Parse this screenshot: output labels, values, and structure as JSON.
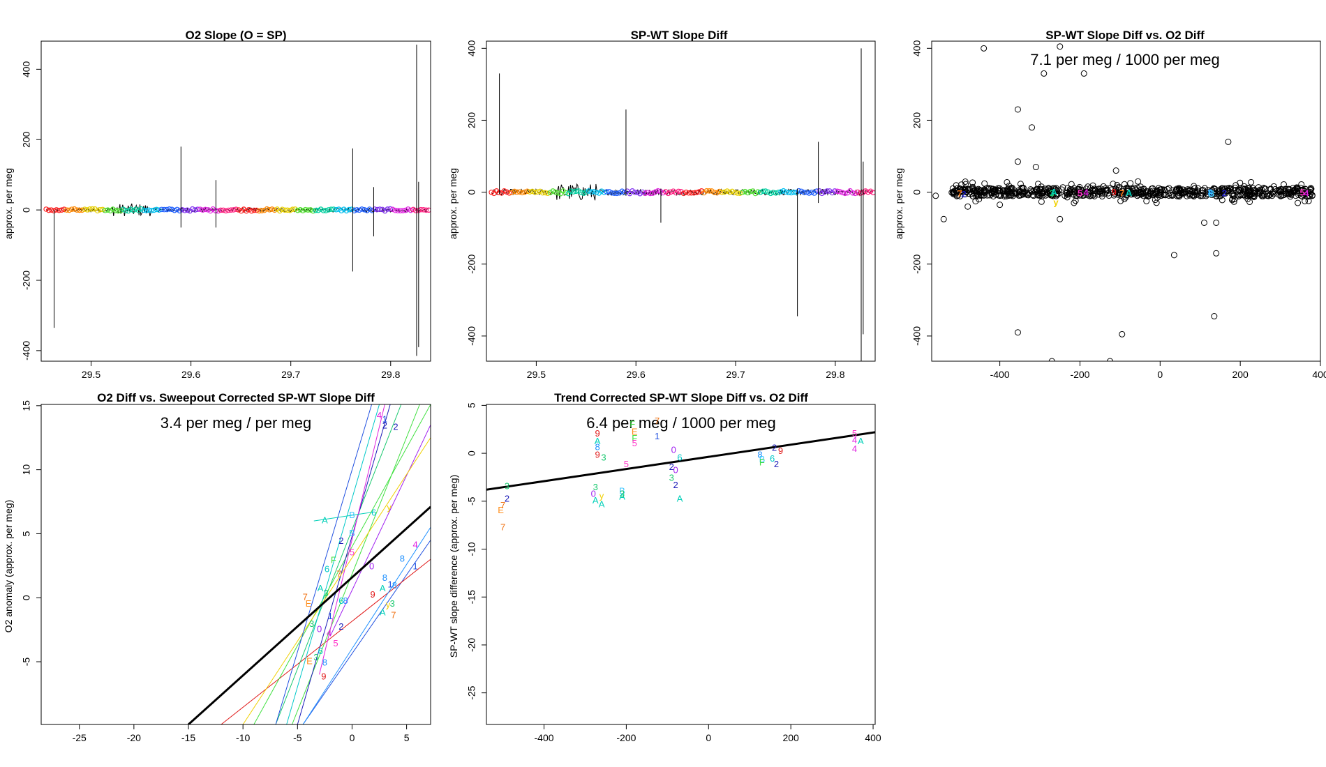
{
  "figure": {
    "description_colors": {
      "frame": "#000000",
      "fit_line": "#000000",
      "background": "#ffffff"
    }
  },
  "label_colors": {
    "0": "#a020f0",
    "1": "#2050e0",
    "2": "#1a1ab8",
    "3": "#18c86e",
    "4": "#e020e0",
    "5": "#ff2fc8",
    "6": "#00c8c8",
    "7": "#f07010",
    "8": "#1e90ff",
    "9": "#e01818",
    "A": "#00d0b8",
    "B": "#40c8ff",
    "E": "#ff8c1a",
    "F": "#40e040",
    "y": "#f0d000"
  },
  "chart_data": [
    {
      "id": "p1",
      "type": "line",
      "title": "O2 Slope (O = SP)",
      "xlabel": "",
      "ylabel": "approx. per meg",
      "xlim": [
        29.45,
        29.84
      ],
      "ylim": [
        -430,
        480
      ],
      "xticks": [
        "29.5",
        "29.6",
        "29.7",
        "29.8"
      ],
      "xtick_values": [
        29.5,
        29.6,
        29.7,
        29.8
      ],
      "yticks": [
        "-400",
        "-200",
        "0",
        "200",
        "400"
      ],
      "ytick_values": [
        -400,
        -200,
        0,
        200,
        400
      ],
      "baseline": 0,
      "noise_band": 6,
      "spikes": [
        {
          "x": 29.463,
          "lo": -335,
          "hi": 0
        },
        {
          "x": 29.59,
          "lo": -50,
          "hi": 180
        },
        {
          "x": 29.625,
          "lo": -50,
          "hi": 85
        },
        {
          "x": 29.762,
          "lo": -175,
          "hi": 175
        },
        {
          "x": 29.783,
          "lo": -75,
          "hi": 65
        },
        {
          "x": 29.826,
          "lo": -415,
          "hi": 470
        },
        {
          "x": 29.828,
          "lo": -390,
          "hi": 80
        }
      ]
    },
    {
      "id": "p2",
      "type": "line",
      "title": "SP-WT Slope Diff",
      "xlabel": "",
      "ylabel": "approx. per meg",
      "xlim": [
        29.45,
        29.84
      ],
      "ylim": [
        -470,
        420
      ],
      "xticks": [
        "29.5",
        "29.6",
        "29.7",
        "29.8"
      ],
      "xtick_values": [
        29.5,
        29.6,
        29.7,
        29.8
      ],
      "yticks": [
        "-400",
        "-200",
        "0",
        "200",
        "400"
      ],
      "ytick_values": [
        -400,
        -200,
        0,
        200,
        400
      ],
      "baseline": 0,
      "noise_band": 8,
      "spikes": [
        {
          "x": 29.463,
          "lo": -5,
          "hi": 330
        },
        {
          "x": 29.59,
          "lo": -10,
          "hi": 230
        },
        {
          "x": 29.625,
          "lo": -85,
          "hi": 10
        },
        {
          "x": 29.762,
          "lo": -345,
          "hi": 10
        },
        {
          "x": 29.783,
          "lo": -30,
          "hi": 140
        },
        {
          "x": 29.826,
          "lo": -470,
          "hi": 400
        },
        {
          "x": 29.828,
          "lo": -395,
          "hi": 85
        }
      ]
    },
    {
      "id": "p3",
      "type": "scatter",
      "title": "SP-WT Slope Diff vs. O2 Diff",
      "annotation": "7.1 per meg / 1000 per meg",
      "xlabel": "",
      "ylabel": "approx. per meg",
      "xlim": [
        -570,
        400
      ],
      "ylim": [
        -470,
        420
      ],
      "xticks": [
        "-400",
        "-200",
        "0",
        "200",
        "400"
      ],
      "xtick_values": [
        -400,
        -200,
        0,
        200,
        400
      ],
      "yticks": [
        "-400",
        "-200",
        "0",
        "200",
        "400"
      ],
      "ytick_values": [
        -400,
        -200,
        0,
        200,
        400
      ],
      "band": {
        "x_from": -520,
        "x_to": 380,
        "y_spread": 12
      },
      "outliers": [
        [
          -440,
          400
        ],
        [
          -250,
          405
        ],
        [
          -290,
          330
        ],
        [
          -190,
          330
        ],
        [
          -355,
          230
        ],
        [
          -320,
          180
        ],
        [
          -355,
          85
        ],
        [
          -310,
          70
        ],
        [
          -110,
          60
        ],
        [
          -540,
          -75
        ],
        [
          -250,
          -75
        ],
        [
          35,
          -175
        ],
        [
          140,
          -170
        ],
        [
          110,
          -85
        ],
        [
          140,
          -85
        ],
        [
          170,
          140
        ],
        [
          -355,
          -390
        ],
        [
          -95,
          -395
        ],
        [
          135,
          -345
        ],
        [
          -270,
          -470
        ],
        [
          -125,
          -470
        ],
        [
          -560,
          -10
        ],
        [
          -480,
          -40
        ],
        [
          -400,
          -35
        ]
      ],
      "clusters": [
        {
          "label": "2",
          "x": -490,
          "y": -8
        },
        {
          "label": "7",
          "x": -500,
          "y": -6
        },
        {
          "label": "3",
          "x": -270,
          "y": -5
        },
        {
          "label": "A",
          "x": -265,
          "y": -2
        },
        {
          "label": "y",
          "x": -260,
          "y": -30
        },
        {
          "label": "5",
          "x": -200,
          "y": -5
        },
        {
          "label": "4",
          "x": -185,
          "y": -3
        },
        {
          "label": "9",
          "x": -115,
          "y": -2
        },
        {
          "label": "7",
          "x": -95,
          "y": -5
        },
        {
          "label": "A",
          "x": -78,
          "y": -4
        },
        {
          "label": "8",
          "x": 125,
          "y": -3
        },
        {
          "label": "B",
          "x": 128,
          "y": -6
        },
        {
          "label": "2",
          "x": 160,
          "y": -5
        },
        {
          "label": "5",
          "x": 355,
          "y": -3
        },
        {
          "label": "4",
          "x": 365,
          "y": -5
        }
      ]
    },
    {
      "id": "p4",
      "type": "scatter",
      "title": "O2 Diff vs. Sweepout Corrected SP-WT Slope Diff",
      "annotation": "3.4 per meg / per meg",
      "xlabel": "",
      "ylabel": "O2 anomaly (approx. per meg)",
      "xlim": [
        -28.5,
        7.2
      ],
      "ylim": [
        -9.9,
        15.1
      ],
      "xticks": [
        "-25",
        "-20",
        "-15",
        "-10",
        "-5",
        "0",
        "5"
      ],
      "xtick_values": [
        -25,
        -20,
        -15,
        -10,
        -5,
        0,
        5
      ],
      "yticks": [
        "-5",
        "0",
        "5",
        "10",
        "15"
      ],
      "ytick_values": [
        -5,
        0,
        5,
        10,
        15
      ],
      "fit_line": [
        [
          -15,
          -9.9
        ],
        [
          7.2,
          7.1
        ]
      ],
      "trend_lines": [
        {
          "label": "1",
          "from": [
            -4.5,
            -9.9
          ],
          "to": [
            7.2,
            4.5
          ]
        },
        {
          "label": "9",
          "from": [
            -12,
            -9.9
          ],
          "to": [
            7.2,
            3.0
          ]
        },
        {
          "label": "3",
          "from": [
            -7,
            -9.9
          ],
          "to": [
            4.5,
            15.1
          ]
        },
        {
          "label": "F",
          "from": [
            -5.5,
            -9.9
          ],
          "to": [
            6.2,
            15.1
          ]
        },
        {
          "label": "F",
          "from": [
            -9,
            -9.9
          ],
          "to": [
            7.2,
            15.1
          ]
        },
        {
          "label": "2",
          "from": [
            -5,
            -9.9
          ],
          "to": [
            3.5,
            15.1
          ]
        },
        {
          "label": "4",
          "from": [
            -3,
            -6
          ],
          "to": [
            3,
            15.1
          ]
        },
        {
          "label": "0",
          "from": [
            -2,
            -3
          ],
          "to": [
            7.2,
            13.5
          ]
        },
        {
          "label": "y",
          "from": [
            -10,
            -9.9
          ],
          "to": [
            7.2,
            12.5
          ]
        },
        {
          "label": "8",
          "from": [
            -4.5,
            -9.9
          ],
          "to": [
            7.2,
            5.5
          ]
        },
        {
          "label": "6",
          "from": [
            -6,
            -9.9
          ],
          "to": [
            2.5,
            15.1
          ]
        },
        {
          "label": "A",
          "from": [
            -3.5,
            6.0
          ],
          "to": [
            2,
            6.7
          ]
        },
        {
          "label": "1",
          "from": [
            -7,
            -9.9
          ],
          "to": [
            1.8,
            15.1
          ]
        }
      ],
      "points": [
        {
          "label": "A",
          "x": -2.5,
          "y": 6.0
        },
        {
          "label": "B",
          "x": 0,
          "y": 6.4
        },
        {
          "label": "6",
          "x": 2,
          "y": 6.6
        },
        {
          "label": "y",
          "x": 3.4,
          "y": 7.0
        },
        {
          "label": "2",
          "x": -1,
          "y": 4.4
        },
        {
          "label": "B",
          "x": 0,
          "y": 5.0
        },
        {
          "label": "5",
          "x": 0,
          "y": 3.5
        },
        {
          "label": "0",
          "x": 1.8,
          "y": 2.4
        },
        {
          "label": "4",
          "x": 5.8,
          "y": 4.1
        },
        {
          "label": "8",
          "x": 4.6,
          "y": 3.0
        },
        {
          "label": "1",
          "x": 5.8,
          "y": 2.4
        },
        {
          "label": "F",
          "x": -1.7,
          "y": 2.9
        },
        {
          "label": "6",
          "x": -2.3,
          "y": 2.2
        },
        {
          "label": "7",
          "x": -1.2,
          "y": 1.8
        },
        {
          "label": "7",
          "x": -4.3,
          "y": 0.0
        },
        {
          "label": "A",
          "x": -2.9,
          "y": 0.7
        },
        {
          "label": "3",
          "x": -2.4,
          "y": 0.3
        },
        {
          "label": "E",
          "x": -4,
          "y": -0.5
        },
        {
          "label": "6",
          "x": -1,
          "y": -0.3
        },
        {
          "label": "8",
          "x": -0.6,
          "y": -0.3
        },
        {
          "label": "9",
          "x": 1.9,
          "y": 0.2
        },
        {
          "label": "8",
          "x": 3,
          "y": 1.5
        },
        {
          "label": "A",
          "x": 2.8,
          "y": 0.7
        },
        {
          "label": "1",
          "x": 3.5,
          "y": 1.0
        },
        {
          "label": "8",
          "x": 3.9,
          "y": 0.9
        },
        {
          "label": "2",
          "x": -1,
          "y": -2.3
        },
        {
          "label": "3",
          "x": -3.7,
          "y": -2.1
        },
        {
          "label": "0",
          "x": -3,
          "y": -2.5
        },
        {
          "label": "4",
          "x": -2.1,
          "y": -2.8
        },
        {
          "label": "5",
          "x": -1.5,
          "y": -3.6
        },
        {
          "label": "6",
          "x": -2.9,
          "y": -4.2
        },
        {
          "label": "3",
          "x": -3.3,
          "y": -4.7
        },
        {
          "label": "E",
          "x": -3.9,
          "y": -5.0
        },
        {
          "label": "8",
          "x": -2.5,
          "y": -5.1
        },
        {
          "label": "9",
          "x": -2.6,
          "y": -6.2
        },
        {
          "label": "A",
          "x": 2.8,
          "y": -1.2
        },
        {
          "label": "7",
          "x": 3.8,
          "y": -1.4
        },
        {
          "label": "3",
          "x": 3.7,
          "y": -0.5
        },
        {
          "label": "y",
          "x": 3.3,
          "y": -0.6
        },
        {
          "label": "1",
          "x": -2.0,
          "y": -1.5
        },
        {
          "label": "1",
          "x": 3.0,
          "y": 13.9
        },
        {
          "label": "2",
          "x": 3.0,
          "y": 13.4
        },
        {
          "label": "4",
          "x": 2.5,
          "y": 14.2
        },
        {
          "label": "2",
          "x": 4.0,
          "y": 13.3
        }
      ]
    },
    {
      "id": "p5",
      "type": "scatter",
      "title": "Trend Corrected SP-WT Slope Diff vs. O2 Diff",
      "annotation": "6.4 per meg / 1000 per meg",
      "xlabel": "",
      "ylabel": "SP-WT slope difference (approx. per meg)",
      "xlim": [
        -540,
        405
      ],
      "ylim": [
        -28.3,
        5.1
      ],
      "xticks": [
        "-400",
        "-200",
        "0",
        "200",
        "400"
      ],
      "xtick_values": [
        -400,
        -200,
        0,
        200,
        400
      ],
      "yticks": [
        "-25",
        "-20",
        "-15",
        "-10",
        "-5",
        "0",
        "5"
      ],
      "ytick_values": [
        -25,
        -20,
        -15,
        -10,
        -5,
        0,
        5
      ],
      "fit_line": [
        [
          -540,
          -3.8
        ],
        [
          405,
          2.2
        ]
      ],
      "points": [
        {
          "label": "3",
          "x": -490,
          "y": -3.5
        },
        {
          "label": "2",
          "x": -490,
          "y": -4.8
        },
        {
          "label": "E",
          "x": -505,
          "y": -6.0
        },
        {
          "label": "7",
          "x": -500,
          "y": -5.5
        },
        {
          "label": "7",
          "x": -500,
          "y": -7.8
        },
        {
          "label": "9",
          "x": -270,
          "y": 2.0
        },
        {
          "label": "A",
          "x": -270,
          "y": 1.2
        },
        {
          "label": "8",
          "x": -270,
          "y": 0.6
        },
        {
          "label": "9",
          "x": -270,
          "y": -0.2
        },
        {
          "label": "3",
          "x": -255,
          "y": -0.5
        },
        {
          "label": "3",
          "x": -275,
          "y": -3.6
        },
        {
          "label": "0",
          "x": -280,
          "y": -4.3
        },
        {
          "label": "A",
          "x": -275,
          "y": -5.0
        },
        {
          "label": "y",
          "x": -260,
          "y": -4.5
        },
        {
          "label": "A",
          "x": -260,
          "y": -5.4
        },
        {
          "label": "F",
          "x": -185,
          "y": 3.0
        },
        {
          "label": "E",
          "x": -180,
          "y": 2.2
        },
        {
          "label": "F",
          "x": -180,
          "y": 1.5
        },
        {
          "label": "5",
          "x": -180,
          "y": 1.0
        },
        {
          "label": "5",
          "x": -200,
          "y": -1.2
        },
        {
          "label": "B",
          "x": -210,
          "y": -4.0
        },
        {
          "label": "A",
          "x": -210,
          "y": -4.6
        },
        {
          "label": "3",
          "x": -210,
          "y": -4.3
        },
        {
          "label": "7",
          "x": -125,
          "y": 3.3
        },
        {
          "label": "1",
          "x": -125,
          "y": 1.7
        },
        {
          "label": "0",
          "x": -85,
          "y": 0.3
        },
        {
          "label": "2",
          "x": -90,
          "y": -1.5
        },
        {
          "label": "6",
          "x": -70,
          "y": -0.5
        },
        {
          "label": "0",
          "x": -80,
          "y": -1.8
        },
        {
          "label": "3",
          "x": -90,
          "y": -2.6
        },
        {
          "label": "2",
          "x": -80,
          "y": -3.4
        },
        {
          "label": "A",
          "x": -70,
          "y": -4.8
        },
        {
          "label": "8",
          "x": 125,
          "y": -0.2
        },
        {
          "label": "B",
          "x": 130,
          "y": -0.7
        },
        {
          "label": "F",
          "x": 130,
          "y": -1.0
        },
        {
          "label": "2",
          "x": 160,
          "y": 0.5
        },
        {
          "label": "9",
          "x": 175,
          "y": 0.2
        },
        {
          "label": "6",
          "x": 155,
          "y": -0.6
        },
        {
          "label": "2",
          "x": 165,
          "y": -1.2
        },
        {
          "label": "5",
          "x": 355,
          "y": 2.0
        },
        {
          "label": "4",
          "x": 355,
          "y": 1.3
        },
        {
          "label": "A",
          "x": 370,
          "y": 1.2
        },
        {
          "label": "4",
          "x": 355,
          "y": 0.4
        }
      ]
    }
  ]
}
